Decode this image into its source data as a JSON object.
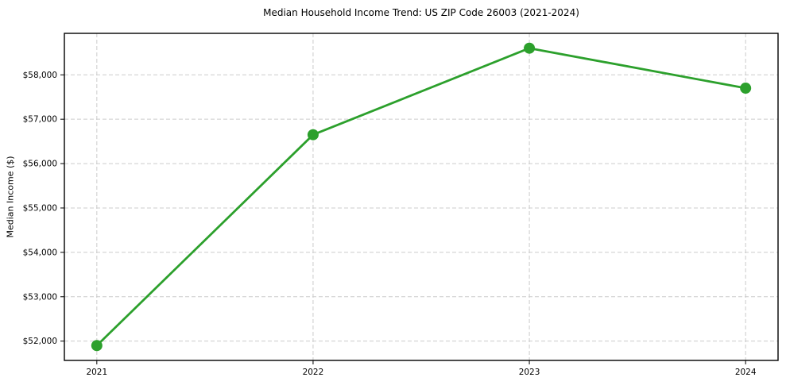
{
  "chart_data": {
    "type": "line",
    "title": "Median Household Income Trend: US ZIP Code 26003 (2021-2024)",
    "xlabel": "",
    "ylabel": "Median Income ($)",
    "x": [
      2021,
      2022,
      2023,
      2024
    ],
    "series": [
      {
        "name": "Median household income",
        "values": [
          51900,
          56650,
          58600,
          57700
        ],
        "color": "#2ca02c",
        "marker": "circle",
        "marker_radius": 7,
        "line_width": 2.8
      }
    ],
    "xtick_values": [
      2021,
      2022,
      2023,
      2024
    ],
    "xtick_labels": [
      "2021",
      "2022",
      "2023",
      "2024"
    ],
    "ytick_values": [
      52000,
      53000,
      54000,
      55000,
      56000,
      57000,
      58000
    ],
    "ytick_labels": [
      "$52,000",
      "$53,000",
      "$54,000",
      "$55,000",
      "$56,000",
      "$57,000",
      "$58,000"
    ],
    "xlim": [
      2020.85,
      2024.15
    ],
    "ylim": [
      51565,
      58935
    ],
    "grid": "dashed",
    "grid_color": "#cccccc",
    "spine_color": "#000000",
    "background": "#ffffff",
    "legend": "none"
  }
}
